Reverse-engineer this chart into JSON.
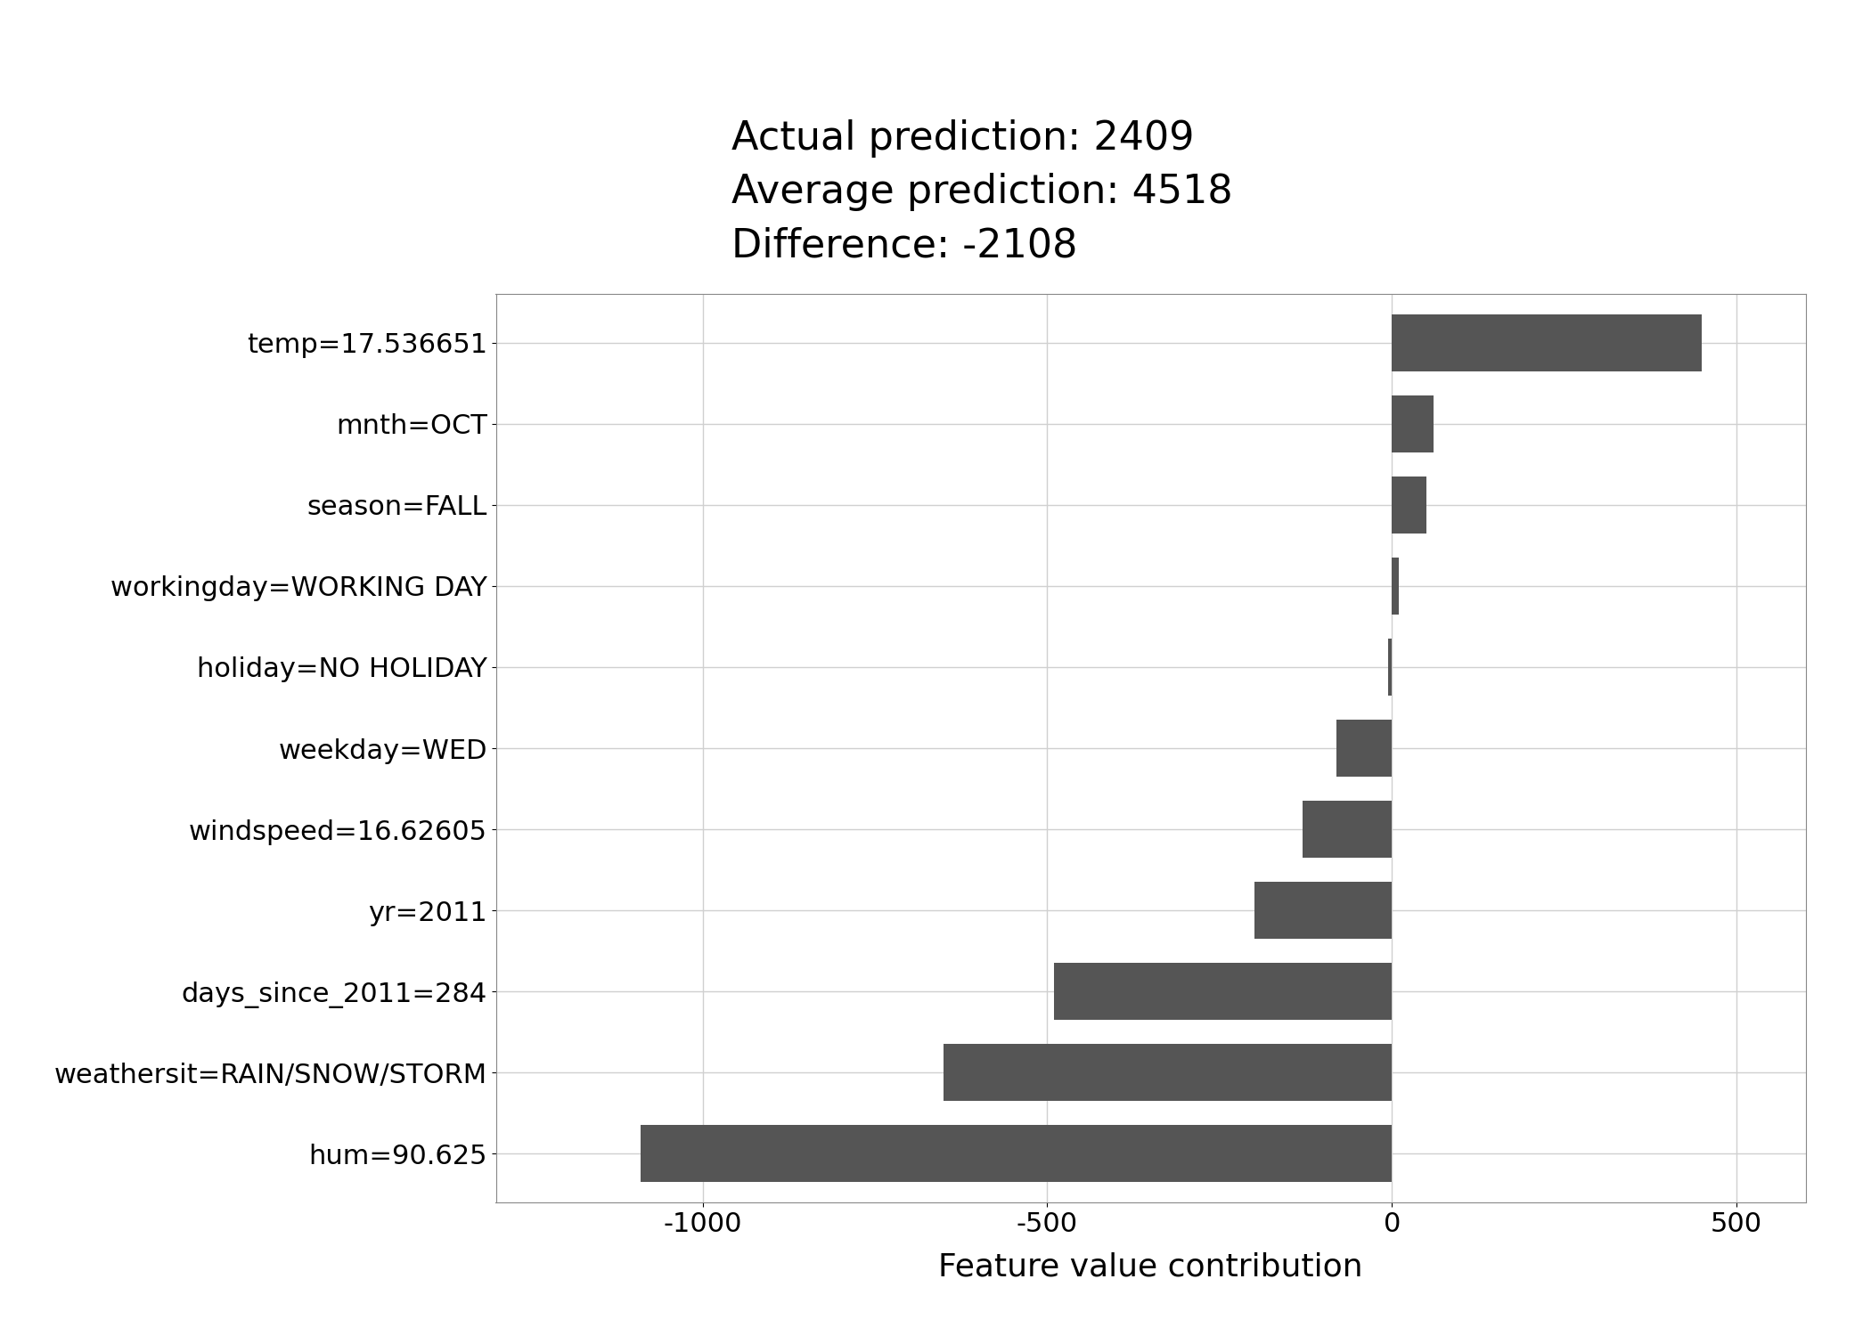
{
  "features": [
    "hum=90.625",
    "weathersit=RAIN/SNOW/STORM",
    "days_since_2011=284",
    "yr=2011",
    "windspeed=16.62605",
    "weekday=WED",
    "holiday=NO HOLIDAY",
    "workingday=WORKING DAY",
    "season=FALL",
    "mnth=OCT",
    "temp=17.536651"
  ],
  "values": [
    -1090,
    -650,
    -490,
    -200,
    -130,
    -80,
    -5,
    10,
    50,
    60,
    450
  ],
  "bar_color": "#555555",
  "background_color": "#ffffff",
  "grid_color": "#d0d0d0",
  "title_lines": [
    "Actual prediction: 2409",
    "Average prediction: 4518",
    "Difference: -2108"
  ],
  "xlabel": "Feature value contribution",
  "xlim": [
    -1300,
    600
  ],
  "xticks": [
    -1000,
    -500,
    0,
    500
  ],
  "title_fontsize": 32,
  "label_fontsize": 22,
  "tick_fontsize": 22,
  "xlabel_fontsize": 26
}
